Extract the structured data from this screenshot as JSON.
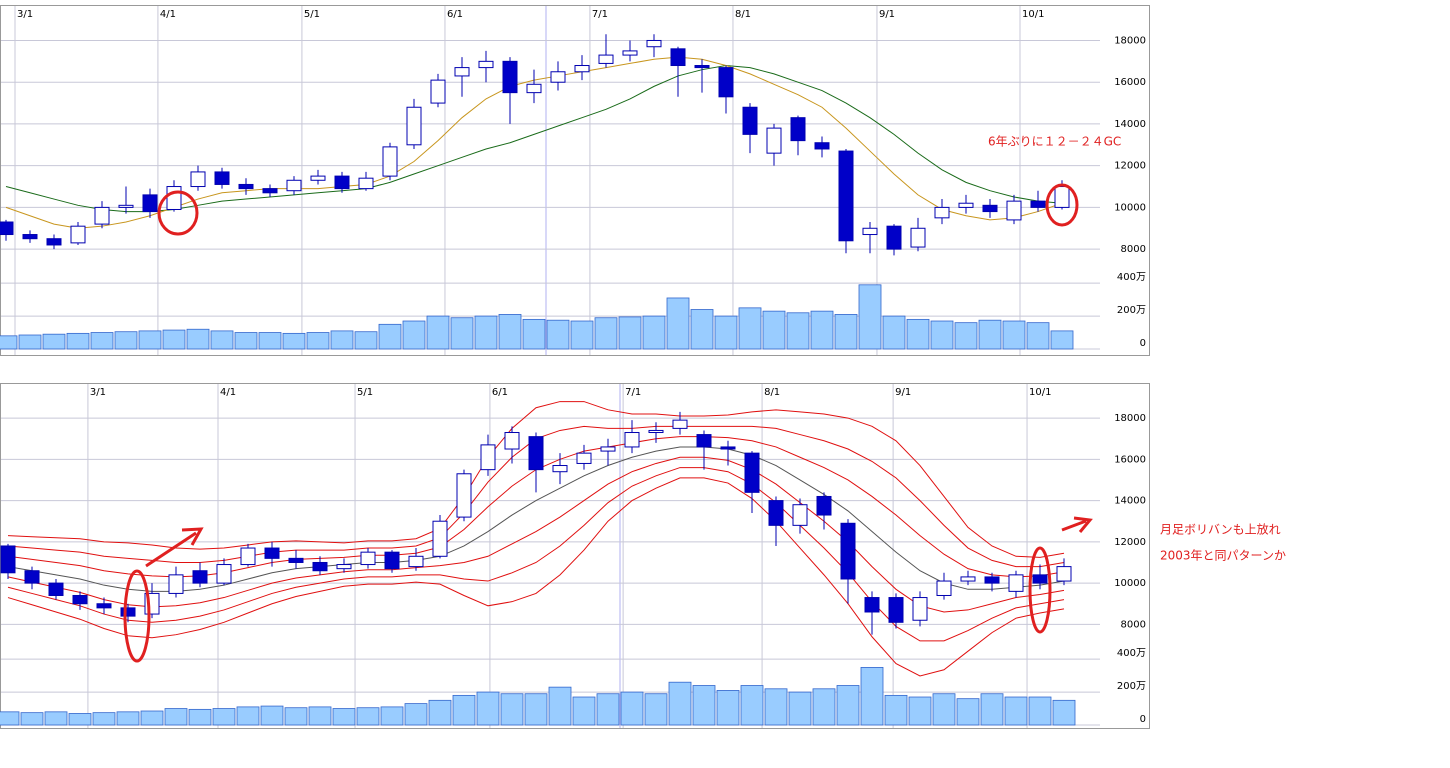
{
  "chart_data": [
    {
      "type": "candlestick",
      "xticks": [
        {
          "value": 0.375,
          "label": "3/1"
        },
        {
          "value": 6.33,
          "label": "4/1"
        },
        {
          "value": 12.33,
          "label": "5/1"
        },
        {
          "value": 18.29,
          "label": "6/1"
        },
        {
          "value": 24.33,
          "label": "7/1"
        },
        {
          "value": 30.29,
          "label": "8/1"
        },
        {
          "value": 36.29,
          "label": "9/1"
        },
        {
          "value": 42.25,
          "label": "10/1"
        }
      ],
      "ylim": [
        7000,
        19700
      ],
      "yticks": [
        8000,
        10000,
        12000,
        14000,
        16000,
        18000
      ],
      "open": [
        9300,
        8700,
        8500,
        8300,
        9200,
        10000,
        10600,
        9900,
        11000,
        11700,
        11100,
        10900,
        10800,
        11300,
        11500,
        10900,
        11500,
        13000,
        15000,
        16300,
        16700,
        17000,
        15500,
        16000,
        16500,
        16900,
        17300,
        17700,
        17600,
        16800,
        16700,
        14800,
        12600,
        14300,
        13100,
        12700,
        8700,
        9100,
        8100,
        9500,
        10000,
        10100,
        9400,
        10300,
        10000
      ],
      "high": [
        9400,
        8900,
        8700,
        9300,
        10300,
        11000,
        10900,
        11300,
        12000,
        11900,
        11400,
        11100,
        11500,
        11800,
        11700,
        11700,
        13100,
        15200,
        16400,
        17200,
        17500,
        17200,
        16600,
        17000,
        17300,
        18300,
        18000,
        18300,
        17700,
        17100,
        16800,
        15000,
        14000,
        14400,
        13400,
        12800,
        9300,
        9200,
        9500,
        10400,
        10600,
        10400,
        10600,
        10800,
        11300
      ],
      "low": [
        8400,
        8300,
        8000,
        8200,
        9000,
        9700,
        9500,
        9800,
        10800,
        10900,
        10600,
        10500,
        10600,
        11100,
        10700,
        10800,
        11300,
        12800,
        14800,
        15300,
        16000,
        14000,
        15000,
        15600,
        16100,
        16700,
        17000,
        17200,
        15300,
        15500,
        14500,
        12600,
        12000,
        12500,
        12400,
        7800,
        7800,
        7700,
        7900,
        9200,
        9700,
        9500,
        9200,
        9800,
        9900
      ],
      "close": [
        8700,
        8500,
        8200,
        9100,
        10000,
        10100,
        9800,
        11000,
        11700,
        11100,
        10900,
        10700,
        11300,
        11500,
        10900,
        11400,
        12900,
        14800,
        16100,
        16700,
        17000,
        15500,
        15900,
        16500,
        16800,
        17300,
        17500,
        18000,
        16800,
        16700,
        15300,
        13500,
        13800,
        13200,
        12800,
        8400,
        9000,
        8000,
        9000,
        10000,
        10200,
        9800,
        10300,
        10000,
        11000
      ],
      "series": [
        {
          "color": "#1a6b1a",
          "values": [
            11000,
            10700,
            10400,
            10100,
            9900,
            9800,
            9800,
            9900,
            10100,
            10300,
            10400,
            10500,
            10600,
            10700,
            10800,
            10900,
            11200,
            11600,
            12000,
            12400,
            12800,
            13100,
            13500,
            13900,
            14300,
            14700,
            15200,
            15800,
            16300,
            16600,
            16800,
            16700,
            16400,
            16000,
            15600,
            15000,
            14300,
            13500,
            12600,
            11800,
            11200,
            10800,
            10500,
            10300,
            10200
          ]
        },
        {
          "color": "#c8961e",
          "values": [
            10000,
            9600,
            9200,
            9000,
            9100,
            9300,
            9600,
            10000,
            10400,
            10700,
            10800,
            10900,
            10900,
            10900,
            11000,
            11100,
            11500,
            12200,
            13200,
            14300,
            15200,
            15800,
            16100,
            16300,
            16500,
            16700,
            16900,
            17100,
            17200,
            17100,
            16800,
            16400,
            15900,
            15400,
            14800,
            13800,
            12700,
            11600,
            10600,
            9900,
            9600,
            9400,
            9500,
            9800,
            10200
          ]
        }
      ],
      "volume": [
        80,
        85,
        90,
        95,
        100,
        105,
        110,
        115,
        120,
        110,
        100,
        100,
        95,
        100,
        110,
        105,
        150,
        170,
        200,
        190,
        200,
        210,
        180,
        175,
        170,
        190,
        195,
        200,
        310,
        240,
        200,
        250,
        230,
        220,
        230,
        210,
        390,
        200,
        180,
        170,
        160,
        175,
        170,
        160,
        110
      ],
      "vlim": [
        0,
        480
      ],
      "vticks": [
        0,
        {
          "value": 200,
          "label": "200万"
        },
        {
          "value": 400,
          "label": "400万"
        }
      ],
      "annotations": [
        "6年ぶりに１２－２４GC"
      ]
    },
    {
      "type": "candlestick",
      "xticks": [
        {
          "value": 3.33,
          "label": "3/1"
        },
        {
          "value": 8.75,
          "label": "4/1"
        },
        {
          "value": 14.46,
          "label": "5/1"
        },
        {
          "value": 20.08,
          "label": "6/1"
        },
        {
          "value": 25.63,
          "label": "7/1"
        },
        {
          "value": 31.42,
          "label": "8/1"
        },
        {
          "value": 36.88,
          "label": "9/1"
        },
        {
          "value": 42.46,
          "label": "10/1"
        }
      ],
      "ylim": [
        7000,
        19700
      ],
      "yticks": [
        8000,
        10000,
        12000,
        14000,
        16000,
        18000
      ],
      "open": [
        11800,
        10600,
        10000,
        9400,
        9000,
        8800,
        8500,
        9500,
        10600,
        10000,
        10900,
        11700,
        11200,
        11000,
        10700,
        10900,
        11500,
        10800,
        11300,
        13200,
        15500,
        16500,
        17100,
        15400,
        15800,
        16400,
        16600,
        17300,
        17500,
        17200,
        16600,
        16300,
        14000,
        12800,
        14200,
        12900,
        9300,
        9300,
        8200,
        9400,
        10100,
        10300,
        9600,
        10400,
        10100
      ],
      "high": [
        11900,
        10800,
        10200,
        9600,
        9300,
        9000,
        10000,
        10800,
        11000,
        11200,
        11900,
        12000,
        11600,
        11300,
        11200,
        11700,
        11600,
        11700,
        13300,
        15500,
        17200,
        17600,
        17300,
        16300,
        16700,
        17000,
        17900,
        17800,
        18300,
        17400,
        16900,
        16400,
        14200,
        14100,
        14400,
        13100,
        9600,
        9500,
        9600,
        10500,
        10600,
        10500,
        10600,
        10900,
        11200
      ],
      "low": [
        10200,
        9700,
        9200,
        8700,
        8500,
        8100,
        8300,
        9300,
        9800,
        9900,
        10800,
        10800,
        10700,
        10400,
        10500,
        10700,
        10500,
        10600,
        11200,
        13000,
        15200,
        15800,
        14400,
        14800,
        15500,
        15700,
        16300,
        16800,
        17200,
        15500,
        15700,
        13400,
        11800,
        12400,
        12600,
        9000,
        7500,
        7800,
        7900,
        9200,
        9900,
        9600,
        9300,
        9700,
        9900
      ],
      "close": [
        10500,
        10000,
        9400,
        9000,
        8800,
        8400,
        9500,
        10400,
        10000,
        10900,
        11700,
        11200,
        11000,
        10600,
        10900,
        11500,
        10700,
        11300,
        13000,
        15300,
        16700,
        17300,
        15500,
        15700,
        16300,
        16600,
        17300,
        17400,
        17900,
        16600,
        16500,
        14400,
        12800,
        13800,
        13300,
        10200,
        8600,
        8100,
        9300,
        10100,
        10300,
        10000,
        10400,
        10000,
        10800
      ],
      "bands": {
        "center": [
          10800,
          10600,
          10400,
          10200,
          9900,
          9700,
          9600,
          9600,
          9700,
          9900,
          10200,
          10500,
          10700,
          10800,
          10900,
          11000,
          11000,
          11100,
          11300,
          11800,
          12500,
          13300,
          14000,
          14600,
          15200,
          15700,
          16100,
          16400,
          16600,
          16600,
          16500,
          16200,
          15700,
          15000,
          14300,
          13500,
          12500,
          11500,
          10600,
          10000,
          9700,
          9700,
          9800,
          9900,
          10100
        ],
        "sd": [
          500,
          550,
          600,
          650,
          700,
          750,
          750,
          700,
          650,
          600,
          550,
          500,
          450,
          400,
          350,
          350,
          350,
          350,
          450,
          800,
          1200,
          1400,
          1500,
          1400,
          1200,
          900,
          700,
          600,
          500,
          500,
          550,
          700,
          900,
          1100,
          1300,
          1500,
          1700,
          1800,
          1700,
          1400,
          1000,
          700,
          500,
          450,
          450
        ],
        "multiples": [
          -3,
          -2,
          -1,
          1,
          2,
          3
        ],
        "center_color": "#555555",
        "color": "#e01010"
      },
      "volume": [
        80,
        75,
        80,
        70,
        75,
        80,
        85,
        100,
        95,
        100,
        110,
        115,
        105,
        110,
        100,
        105,
        110,
        130,
        150,
        180,
        200,
        190,
        190,
        230,
        170,
        190,
        200,
        190,
        260,
        240,
        210,
        240,
        220,
        200,
        220,
        240,
        350,
        180,
        170,
        190,
        160,
        190,
        170,
        170,
        150
      ],
      "vlim": [
        0,
        480
      ],
      "vticks": [
        0,
        {
          "value": 200,
          "label": "200万"
        },
        {
          "value": 400,
          "label": "400万"
        }
      ],
      "annotations": [
        "月足ボリバンも上放れ",
        "2003年と同パターンか"
      ]
    }
  ]
}
